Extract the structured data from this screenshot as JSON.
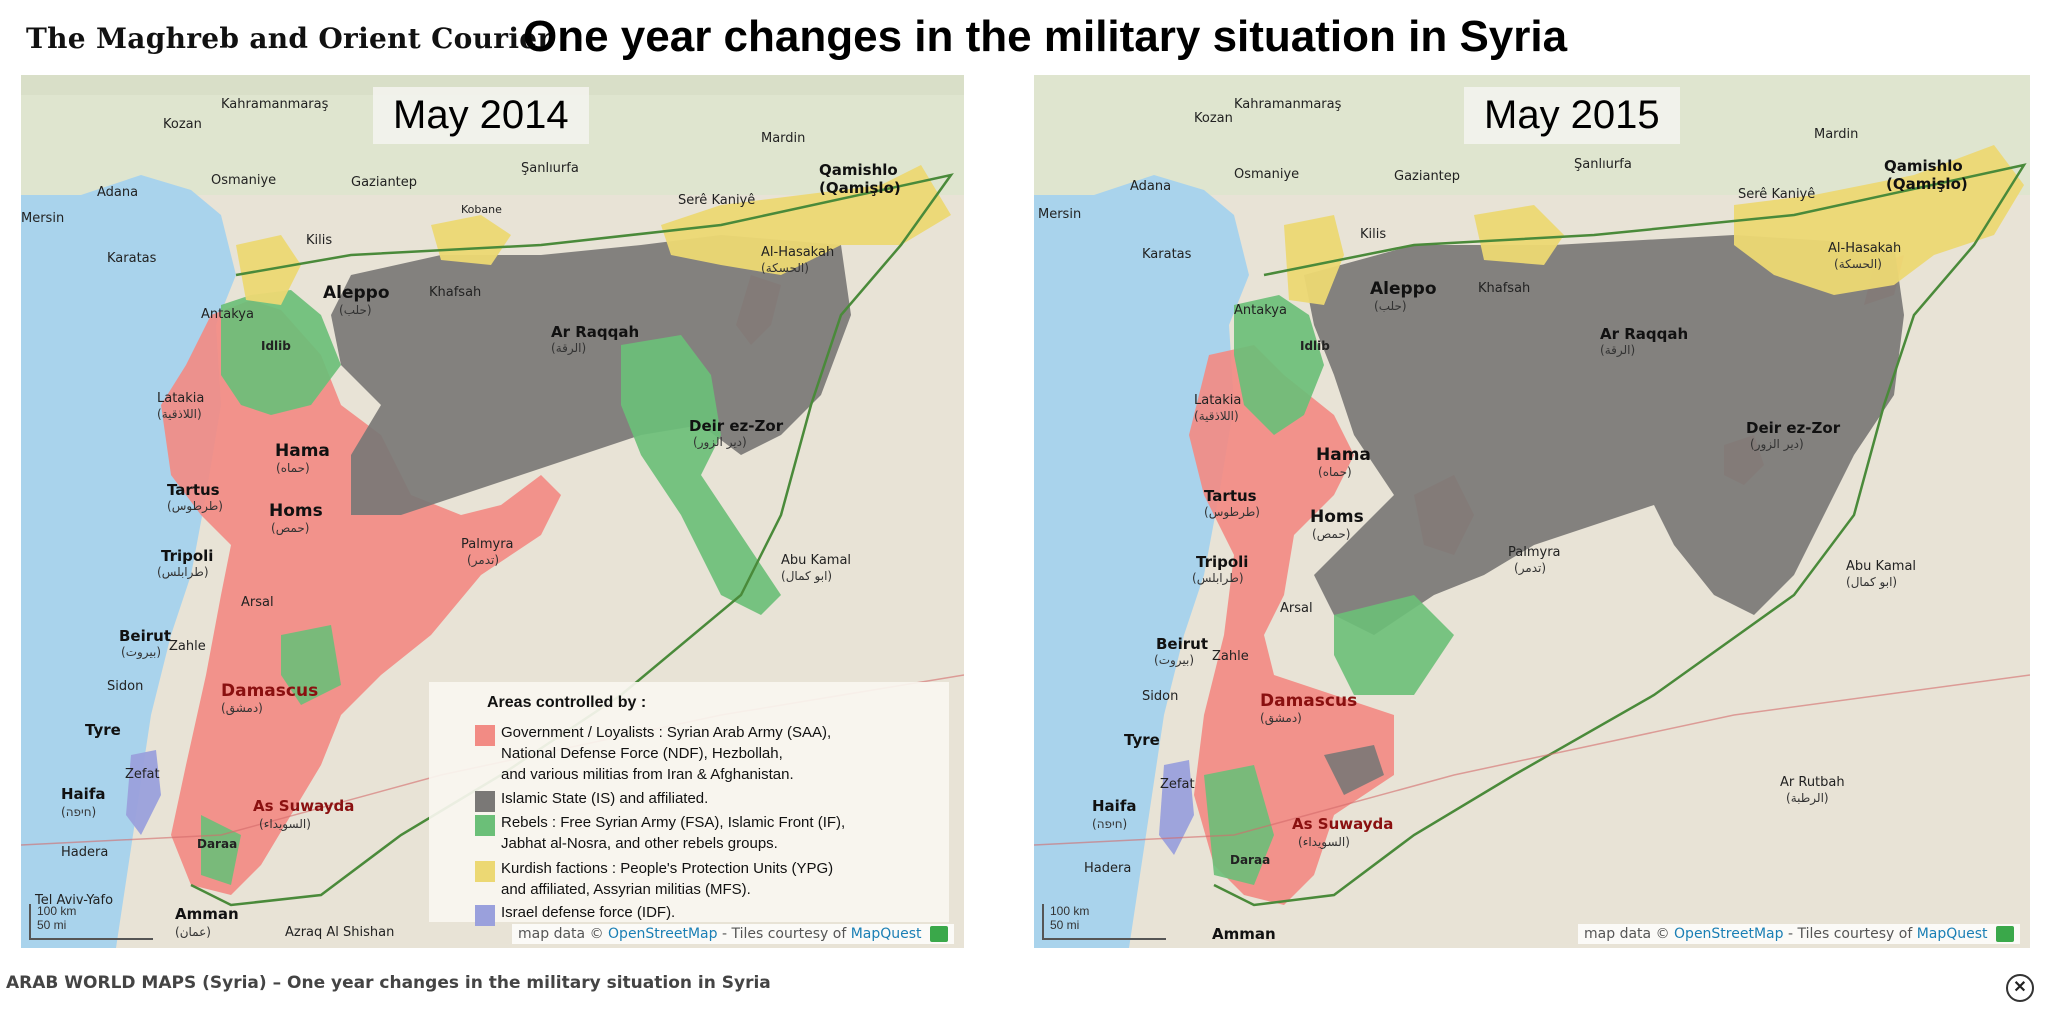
{
  "header": {
    "brand": "The Maghreb and Orient Courier",
    "title": "One year changes in the military situation in Syria"
  },
  "maps": {
    "left": {
      "year": "May 2014"
    },
    "right": {
      "year": "May 2015"
    }
  },
  "places": {
    "aleppo": "Aleppo",
    "aleppo_ar": "(حلب)",
    "idlib": "Idlib",
    "latakia": "Latakia",
    "latakia_ar": "(اللاذقية)",
    "hama": "Hama",
    "hama_ar": "(حماه)",
    "tartus": "Tartus",
    "tartus_ar": "(طرطوس)",
    "homs": "Homs",
    "homs_ar": "(حمص)",
    "tripoli": "Tripoli",
    "tripoli_ar": "(طرابلس)",
    "beirut": "Beirut",
    "beirut_ar": "(بيروت)",
    "damascus": "Damascus",
    "damascus_ar": "(دمشق)",
    "as_suwayda": "As Suwayda",
    "as_suwayda_ar": "(السويداء)",
    "daraa": "Daraa",
    "ar_raqqah": "Ar Raqqah",
    "ar_raqqah_ar": "(الرقة)",
    "deir_ez_zor": "Deir ez-Zor",
    "deir_ez_zor_ar": "(دير الزور)",
    "palmyra": "Palmyra",
    "palmyra_ar": "(تدمر)",
    "abu_kamal": "Abu Kamal",
    "abu_kamal_ar": "(ابو كمال)",
    "qamishlo": "Qamishlo",
    "qamishlo2": "(Qamişlo)",
    "al_hasakah": "Al-Hasakah",
    "al_hasakah_ar": "(الحسكة)",
    "kobane": "Kobane",
    "khafsah": "Khafsah",
    "gaziantep": "Gaziantep",
    "sanliurfa": "Şanlıurfa",
    "kahramanmaras": "Kahramanmaraş",
    "adana": "Adana",
    "osmaniye": "Osmaniye",
    "mersin": "Mersin",
    "karatas": "Karatas",
    "antakya": "Antakya",
    "kilis": "Kilis",
    "kozan": "Kozan",
    "mardin": "Mardin",
    "serekaniye": "Serê Kaniyê",
    "sidon": "Sidon",
    "tyre": "Tyre",
    "haifa": "Haifa",
    "haifa_ar": "(חיפה)",
    "amman": "Amman",
    "amman_ar": "(عمان)",
    "zahle": "Zahle",
    "hadera": "Hadera",
    "tel_aviv": "Tel Aviv-Yafo",
    "azraq": "Azraq Al Shishan",
    "ar_rutbah": "Ar Rutbah",
    "ar_rutbah_ar": "(الرطبة)",
    "zefat": "Zefat",
    "arsal": "Arsal"
  },
  "legend": {
    "title": "Areas controlled by :",
    "items": [
      {
        "text_lines": [
          "Government / Loyalists : Syrian Arab Army (SAA),",
          "National Defense Force (NDF), Hezbollah,",
          "and various militias from Iran & Afghanistan."
        ],
        "color": "#f28b84"
      },
      {
        "text_lines": [
          "Islamic State (IS) and affiliated."
        ],
        "color": "#7a7876"
      },
      {
        "text_lines": [
          "Rebels : Free Syrian Army (FSA), Islamic Front (IF),",
          "Jabhat al-Nosra, and other rebels groups."
        ],
        "color": "#6bbf78"
      },
      {
        "text_lines": [
          "Kurdish factions : People's Protection Units (YPG)",
          "and affiliated, Assyrian militias (MFS)."
        ],
        "color": "#ecd873"
      },
      {
        "text_lines": [
          "Israel defense force (IDF)."
        ],
        "color": "#9aa0dc"
      }
    ]
  },
  "attribution": {
    "prefix": "map data ©",
    "osm": "OpenStreetMap",
    "middle": "- Tiles courtesy of",
    "mapquest": "MapQuest"
  },
  "scale": {
    "km": "100 km",
    "mi": "50 mi"
  },
  "caption": "ARAB WORLD MAPS (Syria) – One year changes in the military situation in Syria",
  "close_label": "✕",
  "colors": {
    "government": "#f28b84",
    "islamic_state": "#7a7876",
    "rebels": "#6bbf78",
    "kurdish": "#ecd873",
    "idf": "#9aa0dc",
    "sea": "#a9d3ec",
    "land": "#e8e3d6"
  }
}
